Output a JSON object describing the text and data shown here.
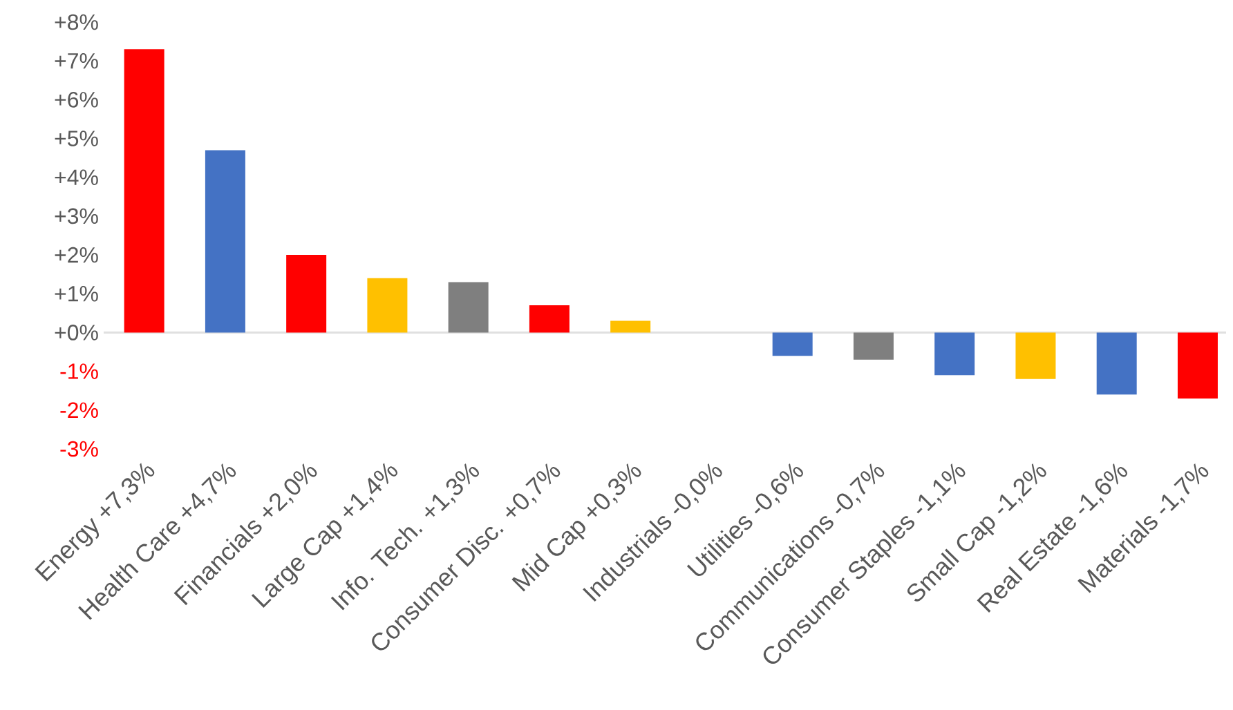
{
  "chart_data": {
    "type": "bar",
    "categories": [
      "Energy +7,3%",
      "Health Care +4,7%",
      "Financials +2,0%",
      "Large Cap +1,4%",
      "Info. Tech. +1,3%",
      "Consumer Disc. +0,7%",
      "Mid Cap +0,3%",
      "Industrials -0,0%",
      "Utilities -0,6%",
      "Communications -0,7%",
      "Consumer Staples -1,1%",
      "Small Cap -1,2%",
      "Real Estate -1,6%",
      "Materials -1,7%"
    ],
    "values": [
      7.3,
      4.7,
      2.0,
      1.4,
      1.3,
      0.7,
      0.3,
      0.0,
      -0.6,
      -0.7,
      -1.1,
      -1.2,
      -1.6,
      -1.7
    ],
    "colors": [
      "#ff0000",
      "#4472c4",
      "#ff0000",
      "#ffc000",
      "#7f7f7f",
      "#ff0000",
      "#ffc000",
      "#7f7f7f",
      "#4472c4",
      "#7f7f7f",
      "#4472c4",
      "#ffc000",
      "#4472c4",
      "#ff0000"
    ],
    "ylim": [
      -3,
      8
    ],
    "yticks": [
      {
        "value": -3,
        "label": "-3%"
      },
      {
        "value": -2,
        "label": "-2%"
      },
      {
        "value": -1,
        "label": "-1%"
      },
      {
        "value": 0,
        "label": "+0%"
      },
      {
        "value": 1,
        "label": "+1%"
      },
      {
        "value": 2,
        "label": "+2%"
      },
      {
        "value": 3,
        "label": "+3%"
      },
      {
        "value": 4,
        "label": "+4%"
      },
      {
        "value": 5,
        "label": "+5%"
      },
      {
        "value": 6,
        "label": "+6%"
      },
      {
        "value": 7,
        "label": "+7%"
      },
      {
        "value": 8,
        "label": "+8%"
      }
    ]
  }
}
